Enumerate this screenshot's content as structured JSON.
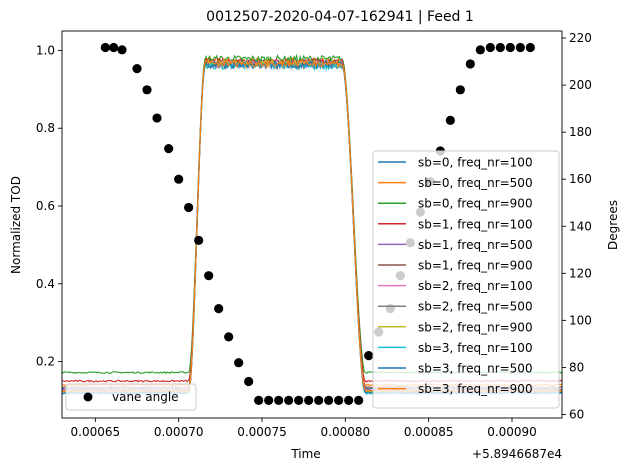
{
  "chart_data": {
    "type": "line",
    "title": "0012507-2020-04-07-162941 | Feed 1",
    "xlabel": "Time",
    "ylabel": "Normalized TOD",
    "ylabel_right": "Degrees",
    "x_offset_label": "+5.8946687e4",
    "xlim": [
      0.00063,
      0.00093
    ],
    "ylim": [
      0.055,
      1.05
    ],
    "ylim_right": [
      58.5,
      223
    ],
    "x_ticks": [
      0.00065,
      0.0007,
      0.00075,
      0.0008,
      0.00085,
      0.0009
    ],
    "x_tick_labels": [
      "0.00065",
      "0.00070",
      "0.00075",
      "0.00080",
      "0.00085",
      "0.00090"
    ],
    "y_ticks": [
      0.2,
      0.4,
      0.6,
      0.8,
      1.0
    ],
    "y_tick_labels": [
      "0.2",
      "0.4",
      "0.6",
      "0.8",
      "1.0"
    ],
    "y_right_ticks": [
      60,
      80,
      100,
      120,
      140,
      160,
      180,
      200,
      220
    ],
    "y_right_tick_labels": [
      "60",
      "80",
      "100",
      "120",
      "140",
      "160",
      "180",
      "200",
      "220"
    ],
    "transition": {
      "rise_start": 0.000706,
      "rise_end": 0.000716,
      "fall_start": 0.000798,
      "fall_end": 0.000812
    },
    "series": [
      {
        "name": "sb=0, freq_nr=100",
        "color": "#1f77b4",
        "low": 0.13,
        "high": 0.968
      },
      {
        "name": "sb=0, freq_nr=500",
        "color": "#ff7f0e",
        "low": 0.14,
        "high": 0.972
      },
      {
        "name": "sb=0, freq_nr=900",
        "color": "#2ca02c",
        "low": 0.172,
        "high": 0.978
      },
      {
        "name": "sb=1, freq_nr=100",
        "color": "#d62728",
        "low": 0.15,
        "high": 0.97
      },
      {
        "name": "sb=1, freq_nr=500",
        "color": "#9467bd",
        "low": 0.128,
        "high": 0.965
      },
      {
        "name": "sb=1, freq_nr=900",
        "color": "#8c564b",
        "low": 0.134,
        "high": 0.968
      },
      {
        "name": "sb=2, freq_nr=100",
        "color": "#e377c2",
        "low": 0.126,
        "high": 0.964
      },
      {
        "name": "sb=2, freq_nr=500",
        "color": "#7f7f7f",
        "low": 0.124,
        "high": 0.962
      },
      {
        "name": "sb=2, freq_nr=900",
        "color": "#bcbd22",
        "low": 0.122,
        "high": 0.966
      },
      {
        "name": "sb=3, freq_nr=100",
        "color": "#17becf",
        "low": 0.118,
        "high": 0.96
      },
      {
        "name": "sb=3, freq_nr=500",
        "color": "#1f77b4",
        "low": 0.12,
        "high": 0.963
      },
      {
        "name": "sb=3, freq_nr=900",
        "color": "#ff7f0e",
        "low": 0.125,
        "high": 0.967
      }
    ],
    "vane_angle": {
      "name": "vane angle",
      "color": "#000000",
      "x": [
        0.000656,
        0.000661,
        0.000666,
        0.000675,
        0.000681,
        0.000687,
        0.000694,
        0.0007,
        0.000706,
        0.000712,
        0.000718,
        0.000724,
        0.00073,
        0.000736,
        0.000742,
        0.000748,
        0.000754,
        0.00076,
        0.000766,
        0.000772,
        0.000778,
        0.000784,
        0.00079,
        0.000796,
        0.000802,
        0.000808,
        0.000814,
        0.00082,
        0.000827,
        0.000833,
        0.000839,
        0.000845,
        0.000851,
        0.000857,
        0.000863,
        0.000869,
        0.000875,
        0.000881,
        0.000887,
        0.000893,
        0.000899,
        0.000905,
        0.000911
      ],
      "y": [
        216,
        216,
        215,
        207,
        198,
        186,
        173,
        160,
        148,
        134,
        119,
        105,
        93,
        82,
        74,
        66,
        66,
        66,
        66,
        66,
        66,
        66,
        66,
        66,
        66,
        66,
        85,
        95,
        105,
        119,
        133,
        146,
        159,
        172,
        185,
        198,
        209,
        215,
        216,
        216,
        216,
        216,
        216
      ]
    },
    "legend_main_position": "center-right",
    "legend_secondary_position": "lower-left",
    "grid": false
  }
}
